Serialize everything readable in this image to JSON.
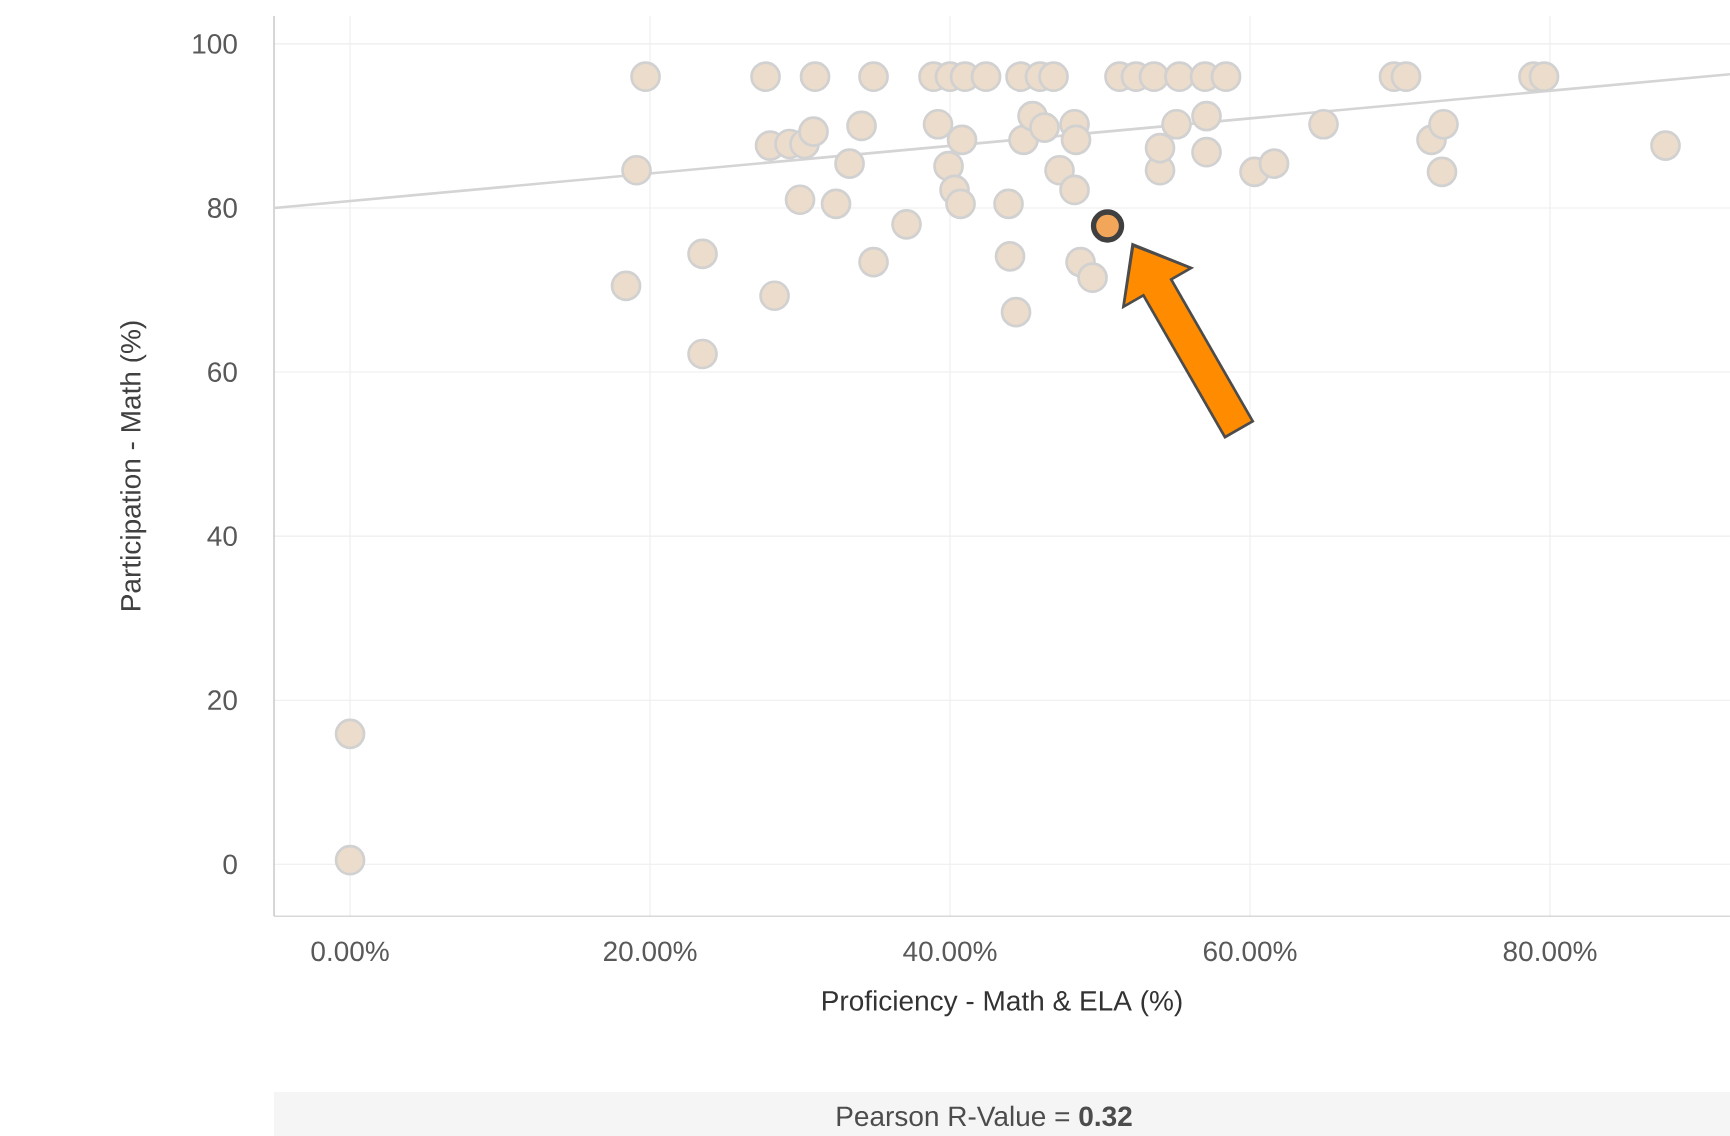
{
  "chart_data": {
    "type": "scatter",
    "xlabel": "Proficiency - Math & ELA (%)",
    "ylabel": "Participation - Math (%)",
    "annotations": [
      "Pearson R-Value = **0.32**"
    ],
    "xlim": [
      -5.07,
      92
    ],
    "ylim": [
      -6.3,
      103.4
    ],
    "xticks": [
      {
        "value": 0,
        "label": "0.00%"
      },
      {
        "value": 20,
        "label": "20.00%"
      },
      {
        "value": 40,
        "label": "40.00%"
      },
      {
        "value": 60,
        "label": "60.00%"
      },
      {
        "value": 80,
        "label": "80.00%"
      }
    ],
    "yticks": [
      0,
      20,
      40,
      60,
      80,
      100
    ],
    "grid": true,
    "series": [
      {
        "color": "#ecdccb",
        "x": [
          19.7,
          27.7,
          31,
          34.9,
          38.9,
          40,
          41,
          42.4,
          44.7,
          46,
          46.9,
          51.3,
          52.4,
          53.6,
          55.3,
          57,
          58.4,
          69.6,
          70.4,
          78.9,
          79.6,
          19.1,
          18.4,
          23.5,
          23.5,
          28,
          28.3,
          29.3,
          30,
          30.3,
          30.9,
          32.4,
          33.3,
          34.1,
          34.9,
          37.1,
          39.2,
          39.9,
          40.3,
          40.7,
          40.8,
          43.9,
          44,
          44.4,
          44.9,
          45.5,
          46.3,
          47.3,
          48.3,
          48.4,
          48.3,
          48.7,
          49.5,
          54,
          54,
          55.1,
          57.1,
          57.1,
          60.3,
          61.6,
          64.9,
          72.1,
          72.9,
          72.8,
          87.7,
          0,
          0
        ],
        "values": [
          96,
          96,
          96,
          96,
          96,
          96,
          96,
          96,
          96,
          96,
          96,
          96,
          96,
          96,
          96,
          96,
          96,
          96,
          96,
          96,
          96,
          84.6,
          70.5,
          74.4,
          62.2,
          87.6,
          69.3,
          87.8,
          81,
          87.8,
          89.3,
          80.5,
          85.4,
          90,
          73.4,
          78,
          90.2,
          85.1,
          82.2,
          80.5,
          88.3,
          80.5,
          74.1,
          67.3,
          88.3,
          91.2,
          89.8,
          84.6,
          90.2,
          88.3,
          82.2,
          73.4,
          71.5,
          84.6,
          87.3,
          90.2,
          86.8,
          91.2,
          84.4,
          85.4,
          90.2,
          88.3,
          90.2,
          84.4,
          87.6,
          15.9,
          0.5
        ]
      },
      {
        "color": "#f2a65a",
        "x": [
          50.5
        ],
        "values": [
          77.8
        ]
      },
      {
        "type": "line",
        "color": "#d4d4d4",
        "x": [
          -5.07,
          92
        ],
        "values": [
          80.0,
          96.3
        ]
      }
    ]
  }
}
